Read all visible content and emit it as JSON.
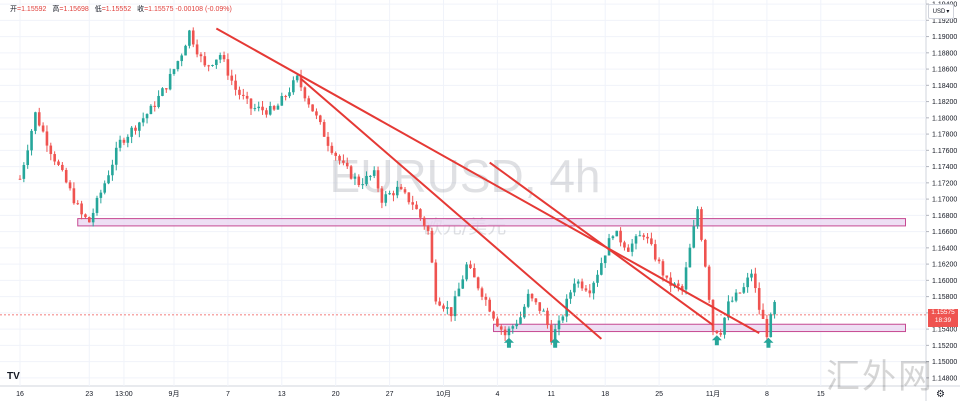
{
  "ohlc": {
    "open_label": "开",
    "open": "=1.15592",
    "high_label": "高",
    "high": "=1.15698",
    "low_label": "低",
    "low": "=1.15552",
    "close_label": "收",
    "close": "=1.15575",
    "change": "-0.00108 (-0.09%)"
  },
  "currency_selector": {
    "label": "USD",
    "icon": "chevron-down-icon"
  },
  "last_price": {
    "value": "1.15575",
    "countdown": "18:39"
  },
  "watermark": {
    "symbol": "EURUSD, 4h",
    "description": "欧元/美元"
  },
  "logos": {
    "tradingview": "TV",
    "site": "汇外网"
  },
  "colors": {
    "up": "#26a69a",
    "down": "#ef5350",
    "trendline": "#e53935",
    "zone_fill": "#e8d4f0",
    "zone_border": "#c64891",
    "arrow": "#26a69a"
  },
  "chart_data": {
    "type": "candlestick",
    "symbol": "EURUSD",
    "timeframe": "4h",
    "y_axis": {
      "ticks": [
        "1.19400",
        "1.19200",
        "1.19000",
        "1.18800",
        "1.18600",
        "1.18400",
        "1.18200",
        "1.18000",
        "1.17800",
        "1.17600",
        "1.17400",
        "1.17200",
        "1.17000",
        "1.16800",
        "1.16600",
        "1.16400",
        "1.16200",
        "1.16000",
        "1.15800",
        "1.15600",
        "1.15400",
        "1.15200",
        "1.15000",
        "1.14800"
      ],
      "range": [
        1.147,
        1.1945
      ]
    },
    "x_axis": {
      "ticks": [
        "16",
        "23",
        "13:00",
        "9月",
        "7",
        "13",
        "20",
        "27",
        "10月",
        "4",
        "11",
        "18",
        "25",
        "11月",
        "8",
        "15"
      ],
      "tick_positions": [
        0,
        9,
        13.5,
        20,
        27,
        34,
        41,
        48,
        55,
        62,
        69,
        76,
        83,
        90,
        97,
        104
      ]
    },
    "path": [
      [
        0,
        1.1725
      ],
      [
        2,
        1.1805
      ],
      [
        4,
        1.176
      ],
      [
        6,
        1.172
      ],
      [
        8,
        1.168
      ],
      [
        9,
        1.1672
      ],
      [
        11,
        1.172
      ],
      [
        13,
        1.177
      ],
      [
        15,
        1.179
      ],
      [
        17,
        1.181
      ],
      [
        19,
        1.184
      ],
      [
        21,
        1.188
      ],
      [
        22,
        1.1906
      ],
      [
        24,
        1.1862
      ],
      [
        26,
        1.1878
      ],
      [
        28,
        1.1835
      ],
      [
        30,
        1.1812
      ],
      [
        33,
        1.1808
      ],
      [
        36,
        1.1848
      ],
      [
        38,
        1.181
      ],
      [
        40,
        1.177
      ],
      [
        42,
        1.174
      ],
      [
        44,
        1.172
      ],
      [
        46,
        1.173
      ],
      [
        47,
        1.17
      ],
      [
        49,
        1.1712
      ],
      [
        51,
        1.1695
      ],
      [
        53,
        1.166
      ],
      [
        54,
        1.158
      ],
      [
        56,
        1.156
      ],
      [
        58,
        1.1618
      ],
      [
        60,
        1.1585
      ],
      [
        62,
        1.1548
      ],
      [
        63,
        1.1533
      ],
      [
        65,
        1.1555
      ],
      [
        66,
        1.158
      ],
      [
        68,
        1.156
      ],
      [
        69,
        1.153
      ],
      [
        70,
        1.1545
      ],
      [
        72,
        1.16
      ],
      [
        74,
        1.159
      ],
      [
        75,
        1.161
      ],
      [
        77,
        1.166
      ],
      [
        79,
        1.164
      ],
      [
        81,
        1.1658
      ],
      [
        83,
        1.162
      ],
      [
        84,
        1.1598
      ],
      [
        86,
        1.1588
      ],
      [
        88,
        1.1688
      ],
      [
        89,
        1.162
      ],
      [
        90,
        1.154
      ],
      [
        91,
        1.1538
      ],
      [
        92,
        1.157
      ],
      [
        94,
        1.159
      ],
      [
        95,
        1.161
      ],
      [
        96,
        1.1565
      ],
      [
        97,
        1.1535
      ],
      [
        98,
        1.157
      ]
    ],
    "trendlines": [
      {
        "from": [
          25.5,
          1.191
        ],
        "to": [
          96,
          1.1535
        ]
      },
      {
        "from": [
          36.5,
          1.1848
        ],
        "to": [
          75.5,
          1.1528
        ]
      },
      {
        "from": [
          61,
          1.1745
        ],
        "to": [
          90,
          1.1545
        ]
      }
    ],
    "zones": [
      {
        "x_from": 7.5,
        "x_to": 115,
        "y_top": 1.1676,
        "y_bottom": 1.1667
      },
      {
        "x_from": 61.5,
        "x_to": 115,
        "y_top": 1.1546,
        "y_bottom": 1.1537
      }
    ],
    "arrows": [
      {
        "x": 63.5,
        "y": 1.1522
      },
      {
        "x": 69.5,
        "y": 1.1522
      },
      {
        "x": 90.5,
        "y": 1.1525
      },
      {
        "x": 97.2,
        "y": 1.1522
      }
    ],
    "last_price": 1.15575,
    "grid": true
  }
}
